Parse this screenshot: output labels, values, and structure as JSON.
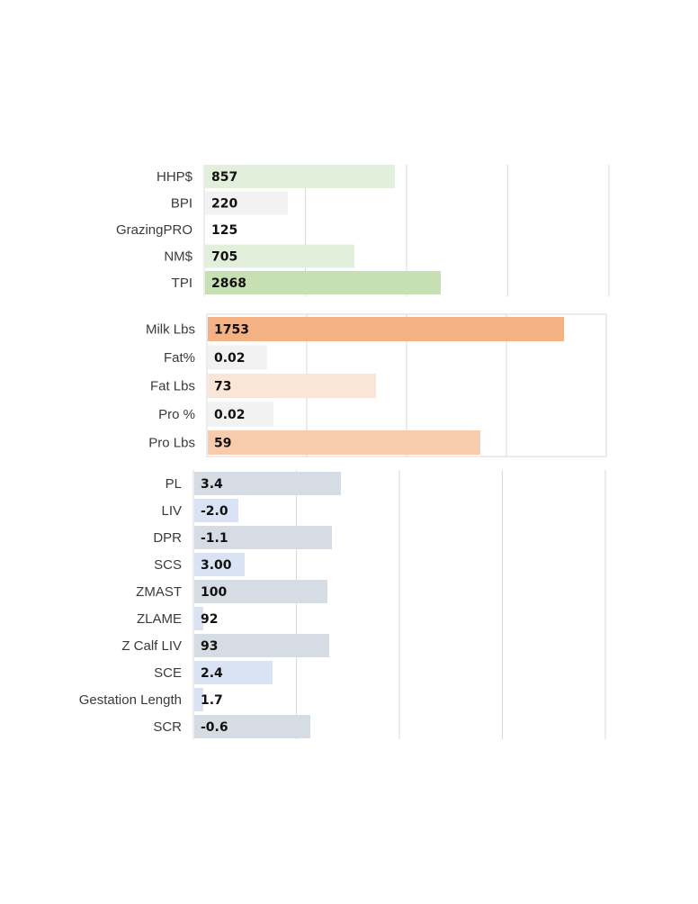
{
  "chart_data": [
    {
      "type": "bar",
      "orientation": "horizontal",
      "grid": true,
      "categories": [
        "HHP$",
        "BPI",
        "GrazingPRO",
        "NM$",
        "TPI"
      ],
      "values": [
        857,
        220,
        125,
        705,
        2868
      ],
      "value_labels": [
        "857",
        "220",
        "125",
        "705",
        "2868"
      ],
      "colors": [
        "#e2efda",
        "#f2f2f2",
        "#ffffff",
        "#e2efda",
        "#c6e0b4"
      ]
    },
    {
      "type": "bar",
      "orientation": "horizontal",
      "grid": true,
      "categories": [
        "Milk Lbs",
        "Fat%",
        "Fat Lbs",
        "Pro %",
        "Pro Lbs"
      ],
      "values": [
        1753,
        0.02,
        73,
        0.02,
        59
      ],
      "value_labels": [
        "1753",
        "0.02",
        "73",
        "0.02",
        "59"
      ],
      "colors": [
        "#f4b183",
        "#f2f2f2",
        "#fbe5d6",
        "#f2f2f2",
        "#f8cbad"
      ]
    },
    {
      "type": "bar",
      "orientation": "horizontal",
      "grid": true,
      "categories": [
        "PL",
        "LIV",
        "DPR",
        "SCS",
        "ZMAST",
        "ZLAME",
        "Z Calf LIV",
        "SCE",
        "Gestation Length",
        "SCR"
      ],
      "values": [
        3.4,
        -2.0,
        -1.1,
        3.0,
        100,
        92,
        93,
        2.4,
        1.7,
        -0.6
      ],
      "value_labels": [
        "3.4",
        "-2.0",
        "-1.1",
        "3.00",
        "100",
        "92",
        "93",
        "2.4",
        "1.7",
        "-0.6"
      ],
      "colors": [
        "#d6dce4",
        "#dae3f3",
        "#d6dce4",
        "#dae3f3",
        "#d6dce4",
        "#dae3f3",
        "#d6dce4",
        "#dae3f3",
        "#dae3f3",
        "#d6dce4"
      ]
    }
  ]
}
